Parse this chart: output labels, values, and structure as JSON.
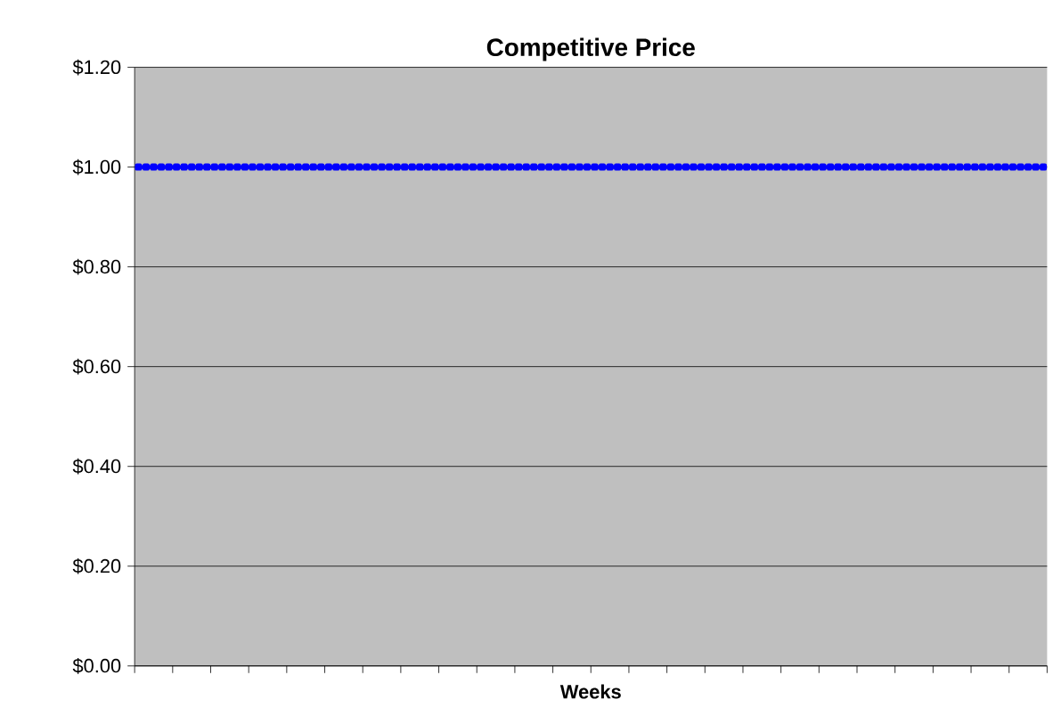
{
  "chart_data": {
    "type": "line",
    "title": "Competitive Price",
    "xlabel": "Weeks",
    "categories": [
      null,
      null,
      null,
      null,
      null,
      null,
      null,
      null,
      null,
      null,
      null,
      null,
      null,
      null,
      null,
      null,
      null,
      null,
      null,
      null,
      null,
      null,
      null,
      null,
      null,
      null,
      null,
      null,
      null,
      null,
      null,
      null,
      null,
      null,
      null,
      null,
      null,
      null,
      null,
      null,
      null,
      null,
      null,
      null,
      null,
      null,
      null,
      null,
      null,
      null,
      null,
      null,
      null,
      null,
      null,
      null,
      null,
      null,
      null,
      null,
      null,
      null,
      null,
      null,
      null,
      null,
      null,
      null,
      null,
      null,
      null,
      null,
      null,
      null,
      null,
      null,
      null,
      null,
      null,
      null,
      null,
      null,
      null,
      null,
      null,
      null,
      null,
      null,
      null,
      null,
      null,
      null,
      null,
      null,
      null,
      null,
      null,
      null,
      null,
      null,
      null,
      null,
      null,
      null,
      null,
      null,
      null,
      null,
      null,
      null,
      null,
      null,
      null,
      null,
      null,
      null,
      null,
      null,
      null,
      null
    ],
    "series": [
      {
        "color": "#0000ff",
        "values": [
          1,
          1,
          1,
          1,
          1,
          1,
          1,
          1,
          1,
          1,
          1,
          1,
          1,
          1,
          1,
          1,
          1,
          1,
          1,
          1,
          1,
          1,
          1,
          1,
          1,
          1,
          1,
          1,
          1,
          1,
          1,
          1,
          1,
          1,
          1,
          1,
          1,
          1,
          1,
          1,
          1,
          1,
          1,
          1,
          1,
          1,
          1,
          1,
          1,
          1,
          1,
          1,
          1,
          1,
          1,
          1,
          1,
          1,
          1,
          1,
          1,
          1,
          1,
          1,
          1,
          1,
          1,
          1,
          1,
          1,
          1,
          1,
          1,
          1,
          1,
          1,
          1,
          1,
          1,
          1,
          1,
          1,
          1,
          1,
          1,
          1,
          1,
          1,
          1,
          1,
          1,
          1,
          1,
          1,
          1,
          1,
          1,
          1,
          1,
          1,
          1,
          1,
          1,
          1,
          1,
          1,
          1,
          1,
          1,
          1,
          1,
          1,
          1,
          1,
          1,
          1,
          1,
          1,
          1,
          1
        ]
      }
    ],
    "ylim": [
      0,
      1.2
    ],
    "yticks": [
      {
        "value": 0,
        "label": "$0.00"
      },
      {
        "value": 0.2,
        "label": "$0.20"
      },
      {
        "value": 0.4,
        "label": "$0.40"
      },
      {
        "value": 0.6,
        "label": "$0.60"
      },
      {
        "value": 0.8,
        "label": "$0.80"
      },
      {
        "value": 1.0,
        "label": "$1.00"
      },
      {
        "value": 1.2,
        "label": "$1.20"
      }
    ],
    "grid": "y",
    "marker": "square",
    "line_style": "solid",
    "tick_labels": "y"
  }
}
